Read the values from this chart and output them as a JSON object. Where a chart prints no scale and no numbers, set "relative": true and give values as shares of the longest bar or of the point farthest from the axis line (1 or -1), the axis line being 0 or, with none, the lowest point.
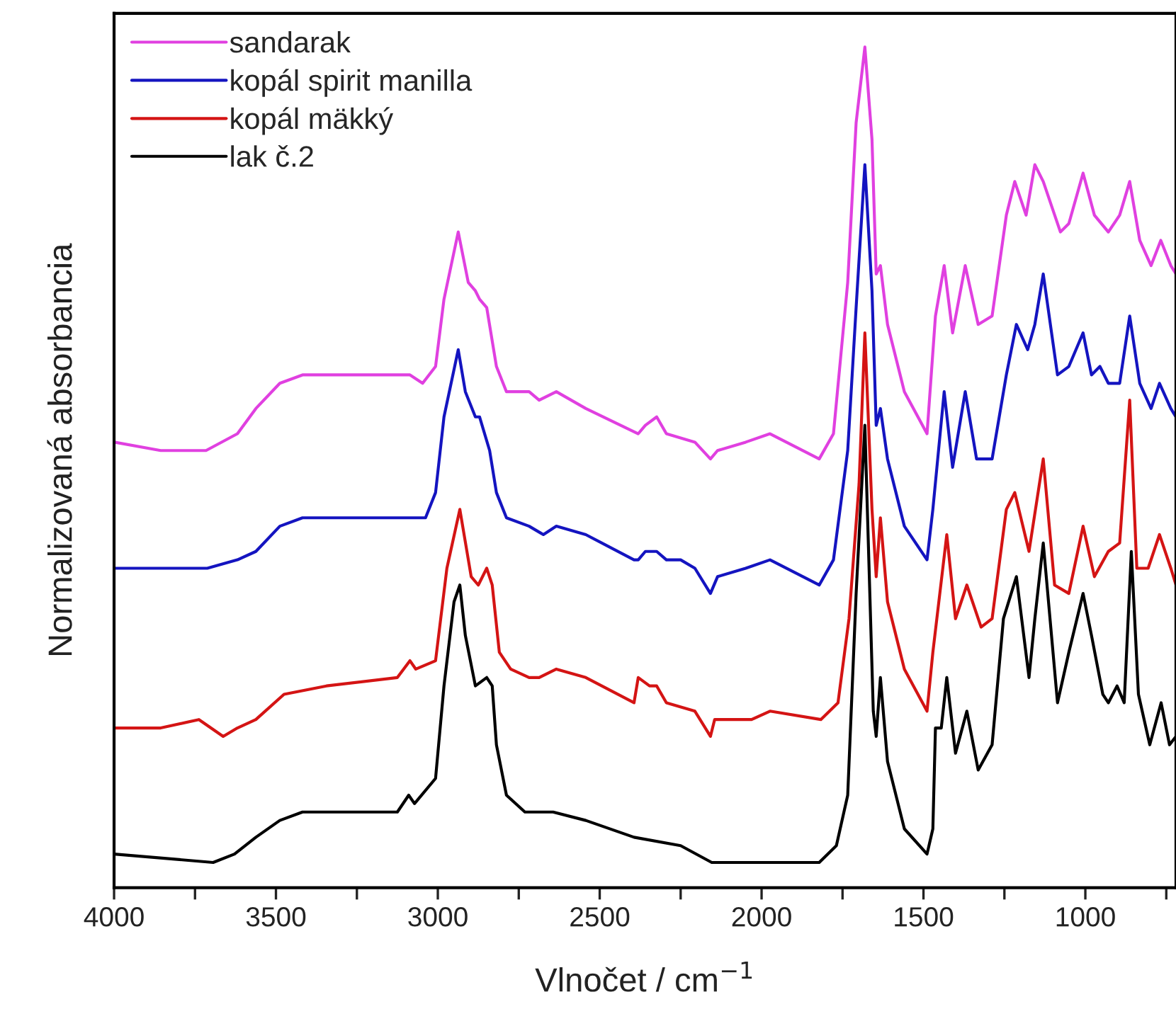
{
  "chart_data": {
    "type": "line",
    "relative": true,
    "xlabel": "Vlnočet / cm$^{−1}$",
    "ylabel": "Normalizovaná absorbancia",
    "xlim": [
      4000,
      720
    ],
    "xticks": [
      4000,
      {
        "value": 3750,
        "label": null
      },
      3500,
      {
        "value": 3250,
        "label": null
      },
      3000,
      {
        "value": 2750,
        "label": null
      },
      2500,
      {
        "value": 2250,
        "label": null
      },
      2000,
      {
        "value": 1750,
        "label": null
      },
      1500,
      {
        "value": 1250,
        "label": null
      },
      1000,
      {
        "value": 750,
        "label": null
      }
    ],
    "tick_labels": "x",
    "legend": "top left",
    "grid": false,
    "marker": "none",
    "line_style": "solid",
    "series": [
      {
        "name": "sandarak",
        "color": "#e040e0",
        "x": [
          4000,
          3856,
          3716,
          3619,
          3562,
          3488,
          3418,
          3125,
          3086,
          3047,
          3007,
          2981,
          2937,
          2906,
          2884,
          2871,
          2849,
          2819,
          2788,
          2718,
          2687,
          2634,
          2543,
          2381,
          2359,
          2324,
          2294,
          2206,
          2158,
          2136,
          2049,
          1974,
          1822,
          1778,
          1734,
          1708,
          1681,
          1659,
          1646,
          1633,
          1611,
          1559,
          1489,
          1463,
          1436,
          1410,
          1371,
          1331,
          1288,
          1244,
          1218,
          1183,
          1156,
          1130,
          1077,
          1051,
          1007,
          972,
          929,
          894,
          863,
          832,
          797,
          767,
          736,
          720
        ],
        "values": [
          0.53,
          0.52,
          0.52,
          0.54,
          0.57,
          0.6,
          0.61,
          0.61,
          0.61,
          0.6,
          0.62,
          0.7,
          0.78,
          0.72,
          0.71,
          0.7,
          0.69,
          0.62,
          0.59,
          0.59,
          0.58,
          0.59,
          0.57,
          0.54,
          0.55,
          0.56,
          0.54,
          0.53,
          0.51,
          0.52,
          0.53,
          0.54,
          0.51,
          0.54,
          0.72,
          0.91,
          1.0,
          0.89,
          0.73,
          0.74,
          0.67,
          0.59,
          0.54,
          0.68,
          0.74,
          0.66,
          0.74,
          0.67,
          0.68,
          0.8,
          0.84,
          0.8,
          0.86,
          0.84,
          0.78,
          0.79,
          0.85,
          0.8,
          0.78,
          0.8,
          0.84,
          0.77,
          0.74,
          0.77,
          0.74,
          0.73
        ]
      },
      {
        "name": "kopál spirit manilla",
        "color": "#1414c0",
        "x": [
          4000,
          3856,
          3712,
          3619,
          3562,
          3488,
          3418,
          3125,
          3086,
          3038,
          3007,
          2981,
          2937,
          2915,
          2884,
          2871,
          2840,
          2819,
          2788,
          2718,
          2674,
          2634,
          2543,
          2394,
          2381,
          2359,
          2324,
          2294,
          2250,
          2206,
          2158,
          2136,
          2049,
          1974,
          1822,
          1778,
          1734,
          1708,
          1681,
          1659,
          1646,
          1633,
          1611,
          1559,
          1489,
          1471,
          1436,
          1410,
          1371,
          1336,
          1288,
          1244,
          1213,
          1178,
          1156,
          1130,
          1086,
          1051,
          1007,
          981,
          955,
          929,
          894,
          863,
          832,
          797,
          771,
          736,
          720
        ],
        "values": [
          0.38,
          0.38,
          0.38,
          0.39,
          0.4,
          0.43,
          0.44,
          0.44,
          0.44,
          0.44,
          0.47,
          0.56,
          0.64,
          0.59,
          0.56,
          0.56,
          0.52,
          0.47,
          0.44,
          0.43,
          0.42,
          0.43,
          0.42,
          0.39,
          0.39,
          0.4,
          0.4,
          0.39,
          0.39,
          0.38,
          0.35,
          0.37,
          0.38,
          0.39,
          0.36,
          0.39,
          0.52,
          0.69,
          0.86,
          0.71,
          0.55,
          0.57,
          0.51,
          0.43,
          0.39,
          0.45,
          0.59,
          0.5,
          0.59,
          0.51,
          0.51,
          0.61,
          0.67,
          0.64,
          0.67,
          0.73,
          0.61,
          0.62,
          0.66,
          0.61,
          0.62,
          0.6,
          0.6,
          0.68,
          0.6,
          0.57,
          0.6,
          0.57,
          0.56
        ]
      },
      {
        "name": "kopál mäkký",
        "color": "#d41414",
        "x": [
          4000,
          3856,
          3738,
          3663,
          3619,
          3562,
          3475,
          3344,
          3125,
          3086,
          3068,
          3007,
          2972,
          2932,
          2897,
          2875,
          2849,
          2832,
          2810,
          2775,
          2718,
          2687,
          2634,
          2543,
          2394,
          2381,
          2346,
          2324,
          2294,
          2206,
          2158,
          2145,
          2031,
          1974,
          1817,
          1764,
          1730,
          1699,
          1681,
          1659,
          1646,
          1633,
          1611,
          1559,
          1489,
          1471,
          1428,
          1401,
          1366,
          1322,
          1288,
          1244,
          1218,
          1174,
          1130,
          1095,
          1051,
          1007,
          972,
          929,
          894,
          863,
          841,
          806,
          771,
          736,
          720
        ],
        "values": [
          0.19,
          0.19,
          0.2,
          0.18,
          0.19,
          0.2,
          0.23,
          0.24,
          0.25,
          0.27,
          0.26,
          0.27,
          0.38,
          0.45,
          0.37,
          0.36,
          0.38,
          0.36,
          0.28,
          0.26,
          0.25,
          0.25,
          0.26,
          0.25,
          0.22,
          0.25,
          0.24,
          0.24,
          0.22,
          0.21,
          0.18,
          0.2,
          0.2,
          0.21,
          0.2,
          0.22,
          0.32,
          0.48,
          0.66,
          0.45,
          0.37,
          0.44,
          0.34,
          0.26,
          0.21,
          0.28,
          0.42,
          0.32,
          0.36,
          0.31,
          0.32,
          0.45,
          0.47,
          0.4,
          0.51,
          0.36,
          0.35,
          0.43,
          0.37,
          0.4,
          0.41,
          0.58,
          0.38,
          0.38,
          0.42,
          0.38,
          0.36
        ]
      },
      {
        "name": "lak č.2",
        "color": "#000000",
        "x": [
          4000,
          3694,
          3628,
          3562,
          3488,
          3418,
          3256,
          3125,
          3090,
          3072,
          3007,
          2981,
          2950,
          2932,
          2915,
          2884,
          2849,
          2832,
          2819,
          2788,
          2731,
          2687,
          2644,
          2543,
          2394,
          2250,
          2154,
          1979,
          1822,
          1769,
          1734,
          1708,
          1681,
          1655,
          1646,
          1633,
          1611,
          1559,
          1489,
          1471,
          1463,
          1445,
          1428,
          1401,
          1366,
          1331,
          1288,
          1253,
          1213,
          1174,
          1156,
          1130,
          1086,
          1051,
          1007,
          981,
          946,
          929,
          902,
          880,
          858,
          836,
          801,
          766,
          740,
          720
        ],
        "values": [
          0.04,
          0.03,
          0.04,
          0.06,
          0.08,
          0.09,
          0.09,
          0.09,
          0.11,
          0.1,
          0.13,
          0.24,
          0.34,
          0.36,
          0.3,
          0.24,
          0.25,
          0.24,
          0.17,
          0.11,
          0.09,
          0.09,
          0.09,
          0.08,
          0.06,
          0.05,
          0.03,
          0.03,
          0.03,
          0.05,
          0.11,
          0.35,
          0.55,
          0.21,
          0.18,
          0.25,
          0.15,
          0.07,
          0.04,
          0.07,
          0.19,
          0.19,
          0.25,
          0.16,
          0.21,
          0.14,
          0.17,
          0.32,
          0.37,
          0.25,
          0.32,
          0.41,
          0.22,
          0.28,
          0.35,
          0.3,
          0.23,
          0.22,
          0.24,
          0.22,
          0.4,
          0.23,
          0.17,
          0.22,
          0.17,
          0.18
        ]
      }
    ]
  }
}
